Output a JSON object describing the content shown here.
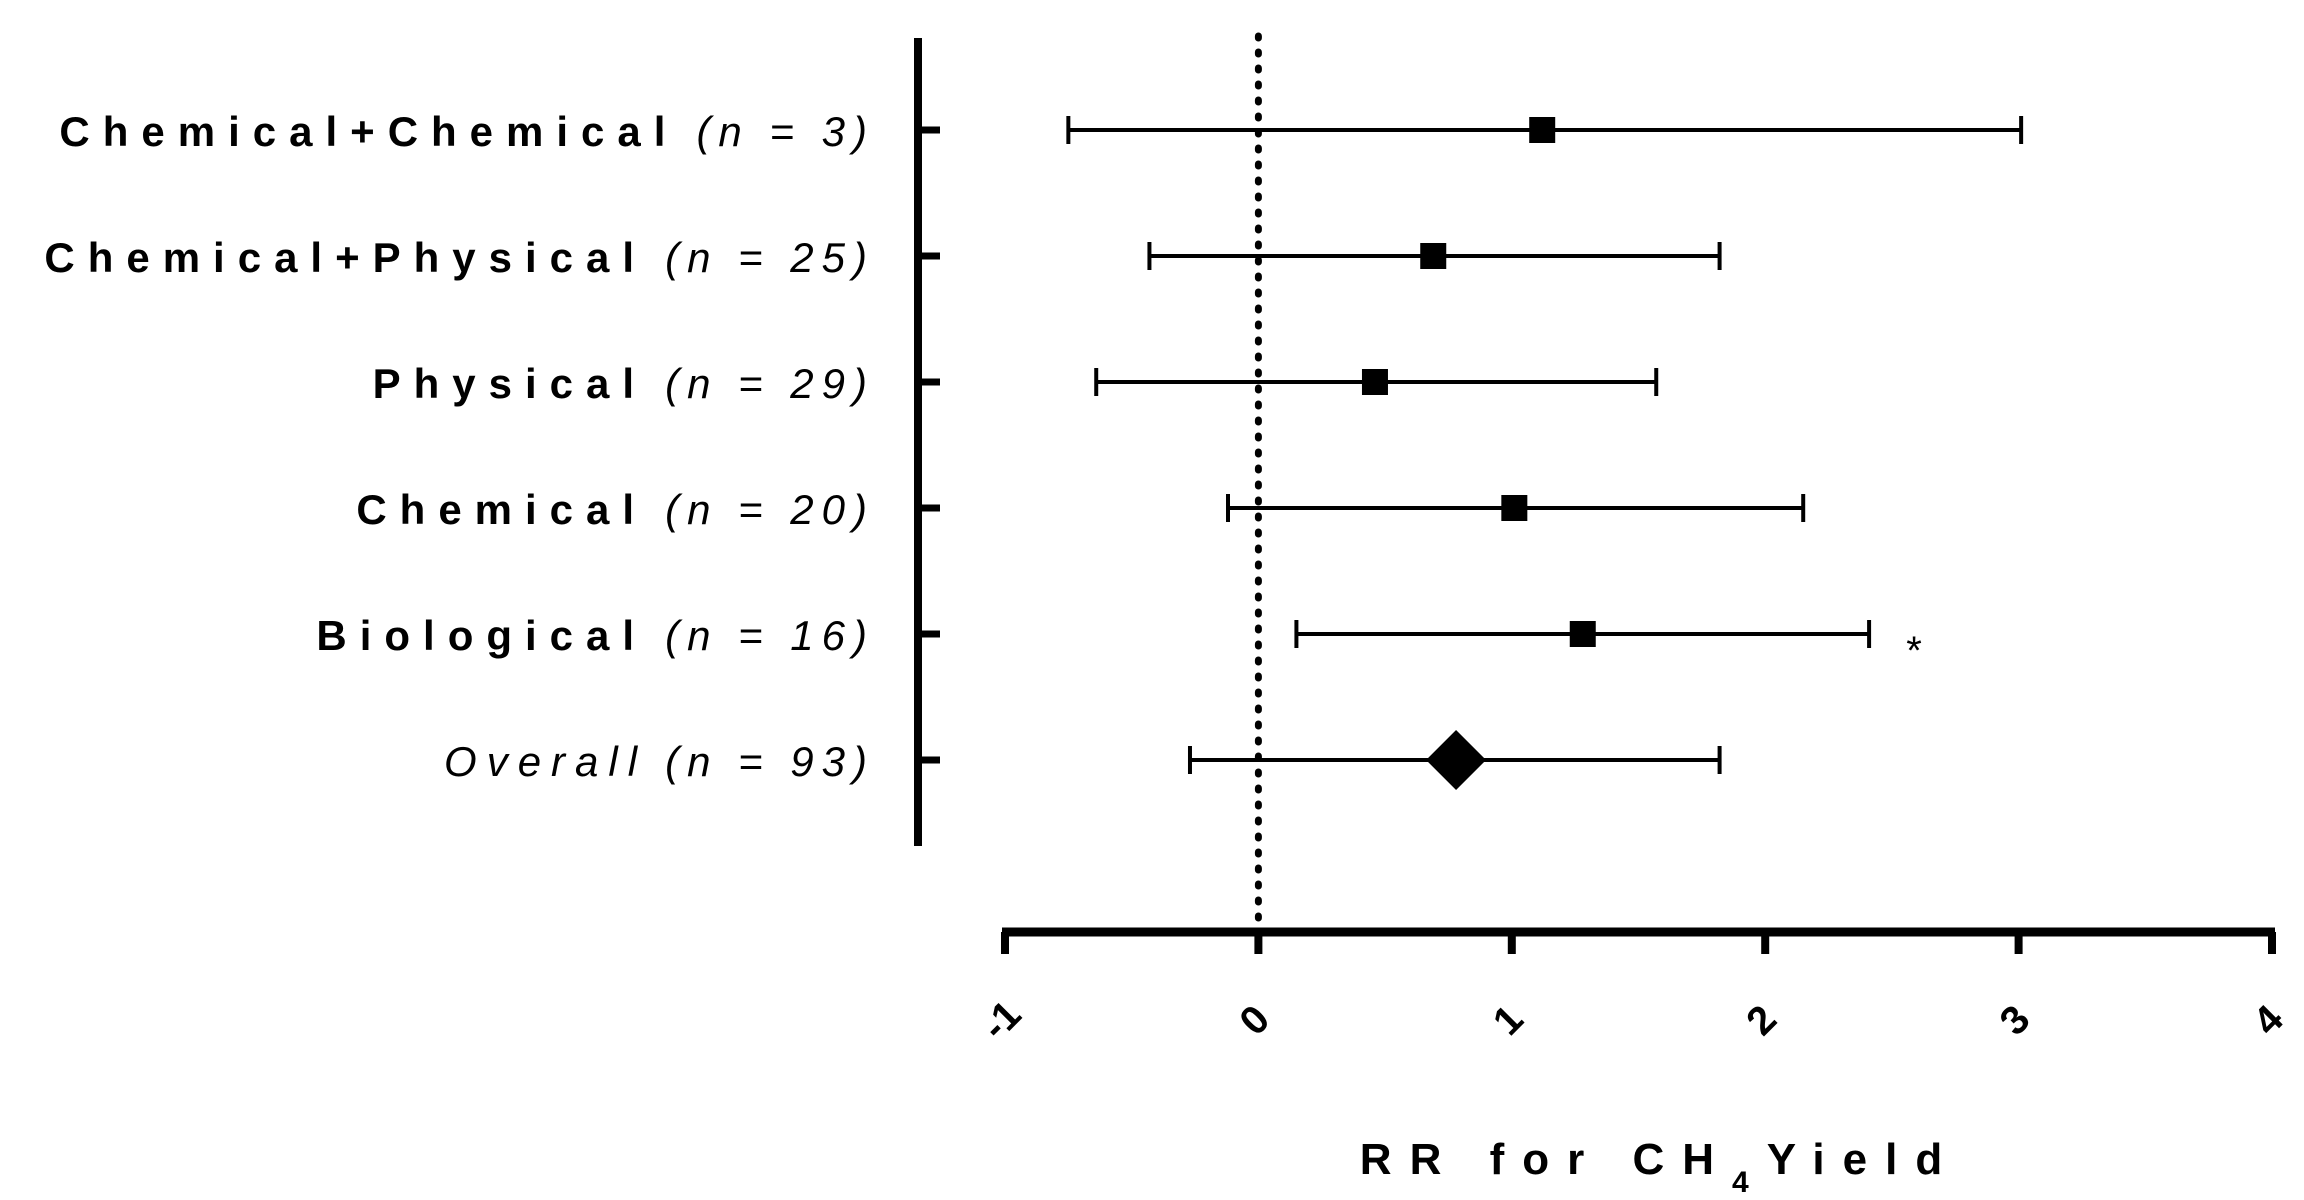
{
  "chart_data": {
    "type": "forest",
    "title": "",
    "xlabel": "RR for CH",
    "xlabel_subscript": "4",
    "xlabel_suffix": "Yield",
    "ylabel": "",
    "xlim": [
      -1,
      4
    ],
    "xticks": [
      -1,
      0,
      1,
      2,
      3,
      4
    ],
    "reference_line": 0,
    "grid": false,
    "rows": [
      {
        "label": "Chemical+Chemical",
        "n_text": "(n = 3)",
        "estimate": 1.12,
        "lower": -0.75,
        "upper": 3.01,
        "marker": "square",
        "annotation": ""
      },
      {
        "label": "Chemical+Physical",
        "n_text": "(n = 25)",
        "estimate": 0.69,
        "lower": -0.43,
        "upper": 1.82,
        "marker": "square",
        "annotation": ""
      },
      {
        "label": "Physical",
        "n_text": "(n = 29)",
        "estimate": 0.46,
        "lower": -0.64,
        "upper": 1.57,
        "marker": "square",
        "annotation": ""
      },
      {
        "label": "Chemical",
        "n_text": "(n = 20)",
        "estimate": 1.01,
        "lower": -0.12,
        "upper": 2.15,
        "marker": "square",
        "annotation": ""
      },
      {
        "label": "Biological",
        "n_text": "(n = 16)",
        "estimate": 1.28,
        "lower": 0.15,
        "upper": 2.41,
        "marker": "square",
        "annotation": "*"
      },
      {
        "label": "Overall",
        "n_text": "(n = 93)",
        "estimate": 0.78,
        "lower": -0.27,
        "upper": 1.82,
        "marker": "diamond",
        "annotation": "",
        "label_italic": true
      }
    ]
  }
}
